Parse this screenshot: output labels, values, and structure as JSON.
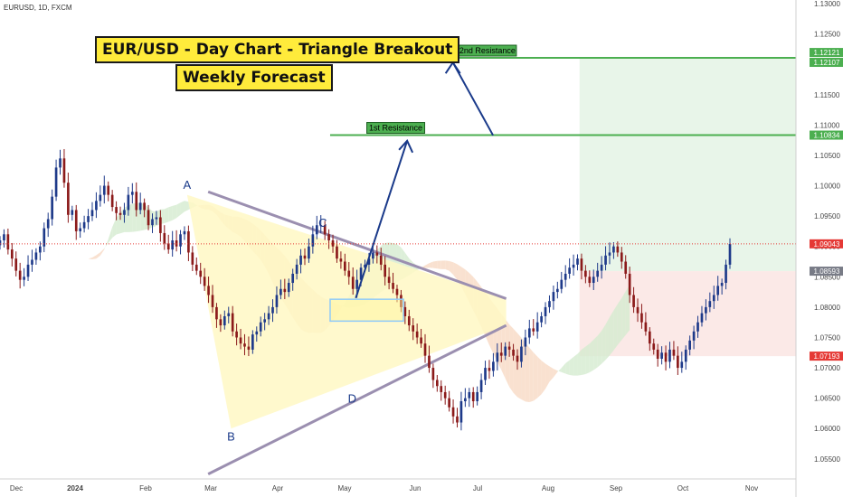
{
  "symbol": "EURUSD, 1D, FXCM",
  "titles": {
    "line1": "EUR/USD - Day Chart - Triangle Breakout",
    "line2": "Weekly Forecast"
  },
  "colors": {
    "bull": "#1e3a8a",
    "bear": "#8b1a1a",
    "triangle_line": "#9b8fb0",
    "resistance": "#4caf50",
    "arrow": "#1a3a8a",
    "triangle_fill": "#fff8c4",
    "cloud_bull": "#d4ebd0",
    "cloud_bear": "#f7d9c4",
    "price_tag": "#e53935",
    "projection_green": "#e8f5e9",
    "projection_red": "#fbe9e7"
  },
  "chart_data": {
    "type": "candlestick",
    "title": "EUR/USD - Day Chart - Triangle Breakout",
    "subtitle": "Weekly Forecast",
    "x_tick_labels": [
      "Dec",
      "2024",
      "Feb",
      "Mar",
      "Apr",
      "May",
      "Jun",
      "Jul",
      "Aug",
      "Sep",
      "Oct",
      "Nov"
    ],
    "y_tick_labels": [
      "1.13000",
      "1.12500",
      "1.12000",
      "1.11500",
      "1.11000",
      "1.10500",
      "1.10000",
      "1.09500",
      "1.09000",
      "1.08500",
      "1.08000",
      "1.07500",
      "1.07000",
      "1.06500",
      "1.06000",
      "1.05500"
    ],
    "ylim": [
      1.0517,
      1.1306
    ],
    "x_index_range": [
      -22,
      195
    ],
    "grid": false,
    "close_seed": [
      1.091,
      1.092,
      1.0895,
      1.088,
      1.086,
      1.0845,
      1.085,
      1.087,
      1.0878,
      1.089,
      1.09,
      1.093,
      1.0945,
      1.0982,
      1.103,
      1.1045,
      1.1005,
      1.0952,
      1.096,
      1.0925,
      1.093,
      1.094,
      1.095,
      1.096,
      1.0975,
      1.0985,
      1.1,
      1.0985,
      1.0965,
      1.0955,
      1.0952,
      1.096,
      1.0985,
      1.099,
      1.096,
      1.0972,
      1.096,
      1.0935,
      1.0945,
      1.0948,
      1.0922,
      1.0905,
      1.0895,
      1.091,
      1.09,
      1.092,
      1.0925,
      1.089,
      1.087,
      1.086,
      1.085,
      1.0835,
      1.082,
      1.08,
      1.078,
      1.077,
      1.0785,
      1.079,
      1.076,
      1.075,
      1.074,
      1.0735,
      1.073,
      1.0755,
      1.076,
      1.0775,
      1.078,
      1.079,
      1.08,
      1.082,
      1.083,
      1.0825,
      1.084,
      1.0855,
      1.087,
      1.0885,
      1.088,
      1.09,
      1.092,
      1.0935,
      1.0935,
      1.092,
      1.091,
      1.09,
      1.088,
      1.0875,
      1.086,
      1.085,
      1.083,
      1.0845,
      1.0865,
      1.087,
      1.088,
      1.089,
      1.0885,
      1.087,
      1.085,
      1.084,
      1.083,
      1.082,
      1.08,
      1.0785,
      1.077,
      1.076,
      1.075,
      1.074,
      1.072,
      1.07,
      1.068,
      1.067,
      1.066,
      1.065,
      1.0635,
      1.062,
      1.061,
      1.0645,
      1.065,
      1.066,
      1.0645,
      1.066,
      1.068,
      1.07,
      1.0695,
      1.071,
      1.0725,
      1.072,
      1.0735,
      1.073,
      1.072,
      1.071,
      1.0735,
      1.075,
      1.0765,
      1.076,
      1.0775,
      1.0785,
      1.08,
      1.081,
      1.0825,
      1.083,
      1.0845,
      1.0855,
      1.0865,
      1.087,
      1.088,
      1.086,
      1.085,
      1.084,
      1.085,
      1.086,
      1.087,
      1.0885,
      1.089,
      1.09,
      1.089,
      1.0875,
      1.0855,
      1.082,
      1.08,
      1.079,
      1.0775,
      1.076,
      1.074,
      1.073,
      1.0715,
      1.0725,
      1.071,
      1.073,
      1.072,
      1.07,
      1.071,
      1.073,
      1.0745,
      1.076,
      1.0775,
      1.079,
      1.08,
      1.081,
      1.082,
      1.0835,
      1.084,
      1.087,
      1.0904
    ],
    "triangle": {
      "upper": [
        [
          -1,
          1.099
        ],
        [
          116,
          1.0814
        ]
      ],
      "lower": [
        [
          -1,
          1.0525
        ],
        [
          116,
          1.077
        ]
      ]
    },
    "resistance_levels": [
      {
        "name": "1st Resistance",
        "value": 1.10834,
        "x_start": 68,
        "x_end": 136
      },
      {
        "name": "2nd Resistance",
        "value": 1.12107,
        "x_start": 98,
        "x_end": 136
      }
    ],
    "price_scale_labels": [
      {
        "value": 1.12121,
        "label": "1.12121",
        "bg": "#4caf50"
      },
      {
        "value": 1.12107,
        "label": "1.12107",
        "bg": "#4caf50"
      },
      {
        "value": 1.10834,
        "label": "1.10834",
        "bg": "#4caf50"
      },
      {
        "value": 1.09043,
        "label": "1.09043",
        "bg": "#e53935"
      },
      {
        "value": 1.08593,
        "label": "1.08593",
        "bg": "#787b86"
      },
      {
        "value": 1.07193,
        "label": "1.07193",
        "bg": "#e53935"
      }
    ],
    "forecast_path": [
      [
        75,
        1.0815
      ],
      [
        81,
        1.0885
      ],
      [
        89,
        1.1083
      ],
      [
        99,
        1.1212
      ]
    ],
    "breakout_box": {
      "x_range": [
        68,
        88
      ],
      "y_range": [
        1.0777,
        1.0813
      ]
    },
    "point_labels": [
      {
        "text": "A",
        "x": 29,
        "y": 1.0995
      },
      {
        "text": "B",
        "x": 41,
        "y": 1.058
      },
      {
        "text": "C",
        "x": 66,
        "y": 1.0932
      },
      {
        "text": "D",
        "x": 74,
        "y": 1.0643
      }
    ]
  },
  "icons": [
    "chart-area"
  ]
}
